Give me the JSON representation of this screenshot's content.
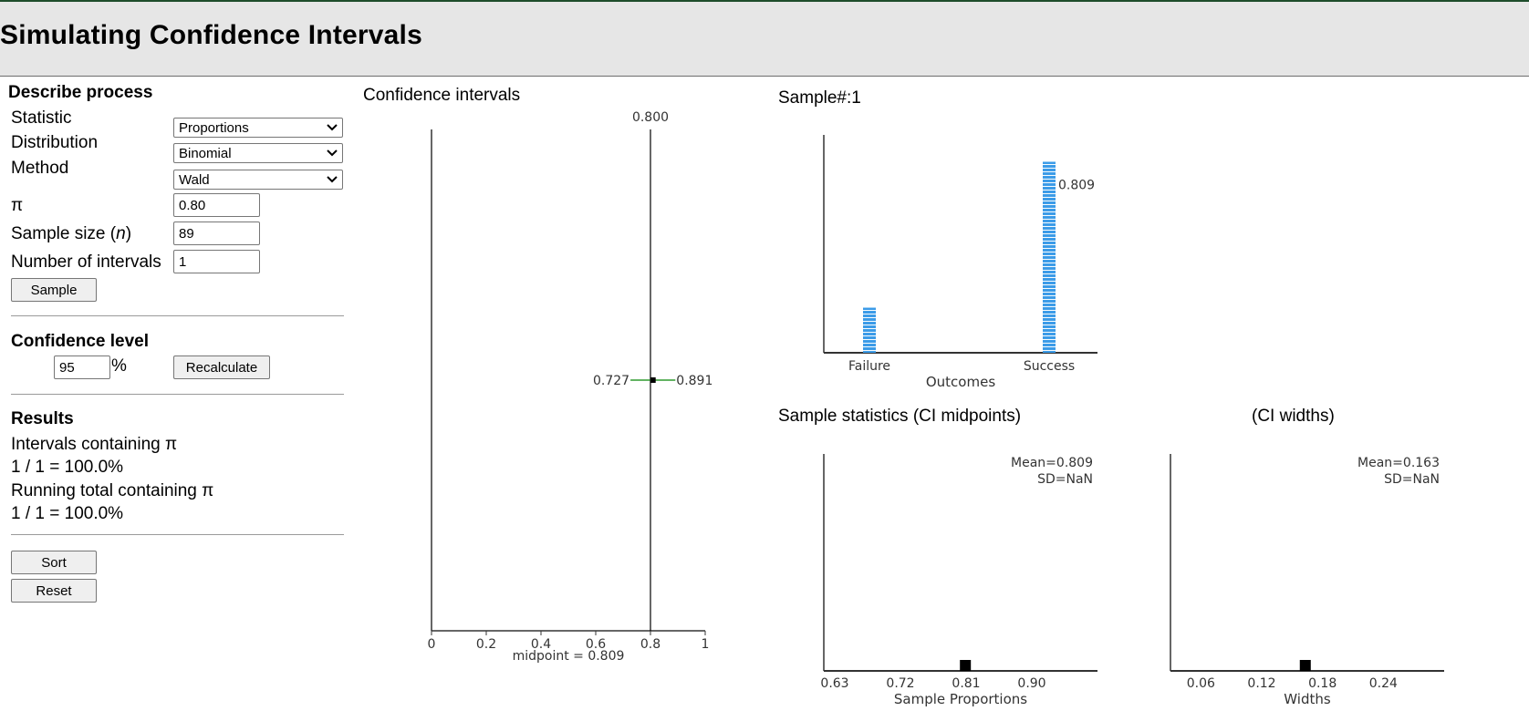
{
  "app": {
    "title": "Simulating Confidence Intervals"
  },
  "process": {
    "title": "Describe process",
    "statistic": {
      "label": "Statistic",
      "value": "Proportions"
    },
    "distribution": {
      "label": "Distribution",
      "value": "Binomial"
    },
    "method": {
      "label": "Method",
      "value": "Wald"
    },
    "pi": {
      "label": "π",
      "value": "0.80"
    },
    "sample_size": {
      "label_prefix": "Sample size (",
      "label_var": "n",
      "label_suffix": ")",
      "value": "89"
    },
    "num_intervals": {
      "label": "Number of intervals",
      "value": "1"
    },
    "sample_button": "Sample"
  },
  "confidence": {
    "title": "Confidence level",
    "value": "95",
    "unit": "%",
    "recalculate_button": "Recalculate"
  },
  "results": {
    "title": "Results",
    "containing_label": "Intervals containing π",
    "containing_value": "1 / 1 = 100.0%",
    "running_label": "Running total containing π",
    "running_value": "1 / 1 = 100.0%"
  },
  "actions": {
    "sort_button": "Sort",
    "reset_button": "Reset"
  },
  "chart_data": [
    {
      "type": "interval",
      "title": "Confidence intervals",
      "xlim": [
        0,
        1
      ],
      "ticks": [
        "0",
        "0.2",
        "0.4",
        "0.6",
        "0.8",
        "1"
      ],
      "reference_line": {
        "value": 0.8,
        "label": "0.800"
      },
      "intervals": [
        {
          "lower": 0.727,
          "upper": 0.891,
          "midpoint": 0.809,
          "lower_label": "0.727",
          "upper_label": "0.891"
        }
      ],
      "footer": "midpoint = 0.809",
      "colors": {
        "interval": "#2e9a2e",
        "reference": "#000000"
      }
    },
    {
      "type": "bar",
      "title": "Sample#:1",
      "categories": [
        "Failure",
        "Success"
      ],
      "values": [
        0.191,
        0.809
      ],
      "value_label": "0.809",
      "xlabel": "Outcomes",
      "ylim": [
        0,
        1
      ],
      "colors": {
        "bar": "#3b9be8"
      }
    },
    {
      "type": "scatter",
      "title": "Sample statistics (CI midpoints)",
      "ticks": [
        "0.63",
        "0.72",
        "0.81",
        "0.90"
      ],
      "xlim": [
        0.615,
        0.99
      ],
      "points": [
        0.809
      ],
      "mean_text": "Mean=0.809",
      "sd_text": "SD=NaN",
      "xlabel": "Sample Proportions"
    },
    {
      "type": "scatter",
      "title": "(CI widths)",
      "ticks": [
        "0.06",
        "0.12",
        "0.18",
        "0.24"
      ],
      "xlim": [
        0.03,
        0.3
      ],
      "points": [
        0.163
      ],
      "mean_text": "Mean=0.163",
      "sd_text": "SD=NaN",
      "xlabel": "Widths"
    }
  ]
}
